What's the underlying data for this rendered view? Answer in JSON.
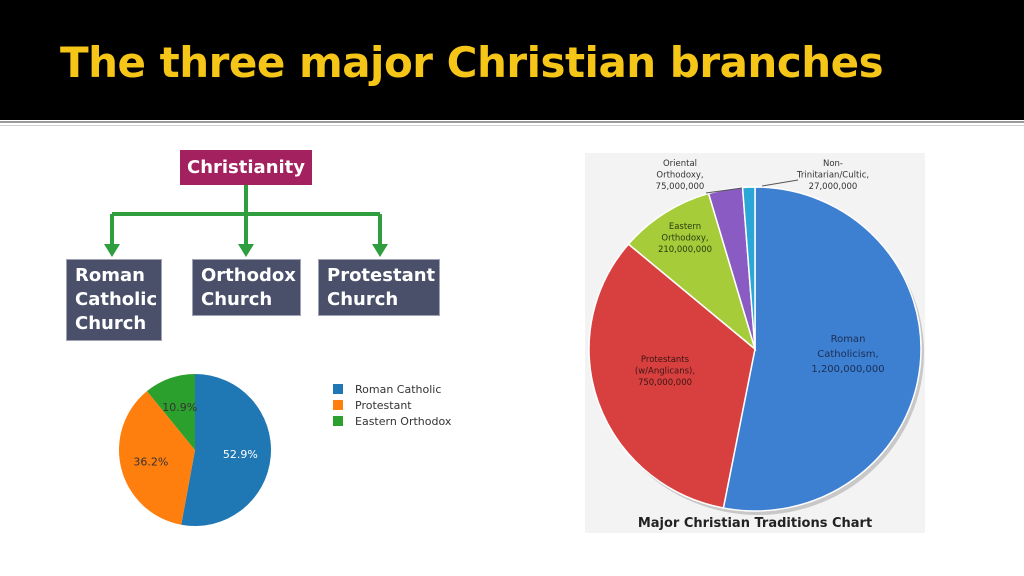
{
  "slide": {
    "title": "The three major Christian branches"
  },
  "hierarchy": {
    "root": "Christianity",
    "branches": [
      {
        "lines": [
          "Roman",
          "Catholic",
          "Church"
        ]
      },
      {
        "lines": [
          "Orthodox",
          "Church"
        ]
      },
      {
        "lines": [
          "Protestant",
          "Church"
        ]
      }
    ],
    "colors": {
      "root": "#a3215f",
      "branch": "#4a4f6a",
      "connector": "#2e9e3e"
    }
  },
  "chart_data": [
    {
      "type": "pie",
      "title": "",
      "categories": [
        "Roman Catholic",
        "Protestant",
        "Eastern Orthodox"
      ],
      "values": [
        52.9,
        36.2,
        10.9
      ],
      "labels": [
        "52.9%",
        "36.2%",
        "10.9%"
      ],
      "colors": [
        "#1f77b4",
        "#ff7f0e",
        "#2ca02c"
      ],
      "legend": "right"
    },
    {
      "type": "pie",
      "title": "Major Christian Traditions Chart",
      "categories": [
        "Roman Catholicism",
        "Protestants (w/Anglicans)",
        "Eastern Orthodoxy",
        "Oriental Orthodoxy",
        "Non-Trinitarian/Cultic"
      ],
      "values": [
        1200000000,
        750000000,
        210000000,
        75000000,
        27000000
      ],
      "label_lines": [
        [
          "Roman",
          "Catholicism,",
          "1,200,000,000"
        ],
        [
          "Protestants",
          "(w/Anglicans),",
          "750,000,000"
        ],
        [
          "Eastern",
          "Orthodoxy,",
          "210,000,000"
        ],
        [
          "Oriental",
          "Orthodoxy,",
          "75,000,000"
        ],
        [
          "Non-",
          "Trinitarian/Cultic,",
          "27,000,000"
        ]
      ],
      "colors": [
        "#3d7fd1",
        "#d8403f",
        "#a6cc3a",
        "#8a5bc2",
        "#2aa7d6"
      ],
      "legend": "none"
    }
  ]
}
